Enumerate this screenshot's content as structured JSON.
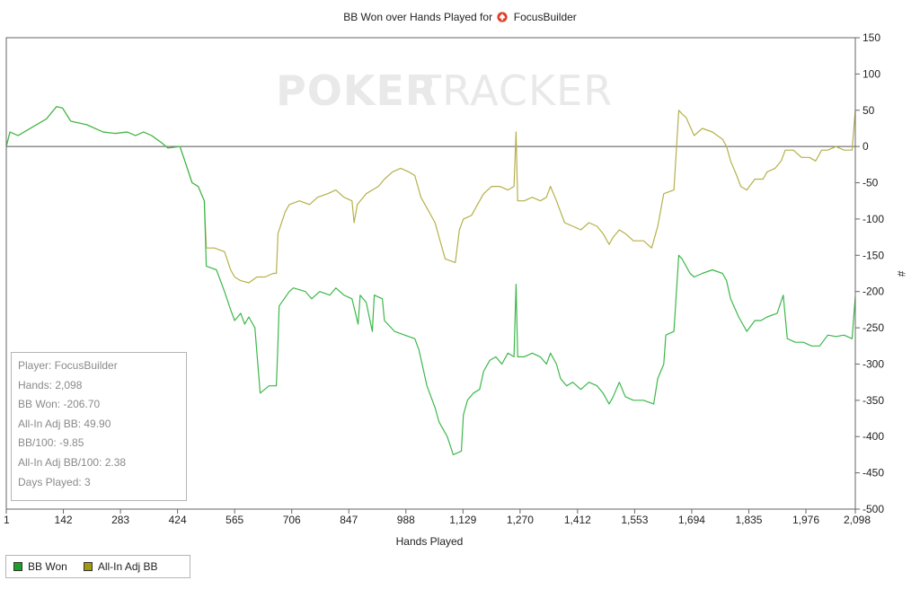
{
  "title": {
    "prefix": "BB Won over Hands Played for",
    "player": "FocusBuilder"
  },
  "watermark": {
    "part1": "POKER",
    "part2": "TRACKER"
  },
  "chart_data": {
    "type": "line",
    "title": "BB Won over Hands Played for FocusBuilder",
    "xlabel": "Hands Played",
    "ylabel": "#",
    "xlim": [
      1,
      2098
    ],
    "ylim": [
      -500,
      150
    ],
    "x_ticks": [
      1,
      142,
      283,
      424,
      565,
      706,
      847,
      988,
      1129,
      1270,
      1412,
      1553,
      1694,
      1835,
      1976,
      2098
    ],
    "x_tick_labels": [
      "1",
      "142",
      "283",
      "424",
      "565",
      "706",
      "847",
      "988",
      "1,129",
      "1,270",
      "1,412",
      "1,553",
      "1,694",
      "1,835",
      "1,976",
      "2,098"
    ],
    "y_ticks": [
      150,
      100,
      50,
      0,
      -50,
      -100,
      -150,
      -200,
      -250,
      -300,
      -350,
      -400,
      -450,
      -500
    ],
    "grid": false,
    "legend_position": "bottom-left",
    "series": [
      {
        "name": "BB Won",
        "color": "#3cb84a",
        "points": [
          [
            1,
            0
          ],
          [
            10,
            20
          ],
          [
            30,
            15
          ],
          [
            60,
            25
          ],
          [
            100,
            38
          ],
          [
            125,
            55
          ],
          [
            140,
            53
          ],
          [
            160,
            35
          ],
          [
            200,
            30
          ],
          [
            240,
            20
          ],
          [
            270,
            18
          ],
          [
            300,
            20
          ],
          [
            320,
            15
          ],
          [
            340,
            20
          ],
          [
            360,
            15
          ],
          [
            385,
            5
          ],
          [
            400,
            -2
          ],
          [
            430,
            0
          ],
          [
            445,
            -25
          ],
          [
            460,
            -50
          ],
          [
            475,
            -55
          ],
          [
            490,
            -75
          ],
          [
            495,
            -165
          ],
          [
            520,
            -170
          ],
          [
            540,
            -200
          ],
          [
            555,
            -225
          ],
          [
            565,
            -240
          ],
          [
            580,
            -230
          ],
          [
            590,
            -245
          ],
          [
            600,
            -235
          ],
          [
            615,
            -250
          ],
          [
            628,
            -340
          ],
          [
            650,
            -330
          ],
          [
            668,
            -330
          ],
          [
            672,
            -270
          ],
          [
            675,
            -220
          ],
          [
            700,
            -200
          ],
          [
            710,
            -195
          ],
          [
            740,
            -200
          ],
          [
            755,
            -210
          ],
          [
            775,
            -200
          ],
          [
            800,
            -205
          ],
          [
            815,
            -195
          ],
          [
            835,
            -205
          ],
          [
            855,
            -210
          ],
          [
            870,
            -245
          ],
          [
            875,
            -205
          ],
          [
            890,
            -215
          ],
          [
            905,
            -255
          ],
          [
            910,
            -205
          ],
          [
            930,
            -210
          ],
          [
            935,
            -240
          ],
          [
            960,
            -255
          ],
          [
            985,
            -260
          ],
          [
            1010,
            -265
          ],
          [
            1020,
            -280
          ],
          [
            1040,
            -330
          ],
          [
            1060,
            -360
          ],
          [
            1070,
            -380
          ],
          [
            1090,
            -400
          ],
          [
            1105,
            -425
          ],
          [
            1125,
            -420
          ],
          [
            1130,
            -370
          ],
          [
            1140,
            -350
          ],
          [
            1155,
            -340
          ],
          [
            1170,
            -335
          ],
          [
            1180,
            -310
          ],
          [
            1195,
            -295
          ],
          [
            1210,
            -290
          ],
          [
            1225,
            -300
          ],
          [
            1240,
            -285
          ],
          [
            1255,
            -290
          ],
          [
            1260,
            -190
          ],
          [
            1264,
            -290
          ],
          [
            1280,
            -290
          ],
          [
            1300,
            -285
          ],
          [
            1320,
            -290
          ],
          [
            1335,
            -300
          ],
          [
            1345,
            -285
          ],
          [
            1360,
            -300
          ],
          [
            1370,
            -320
          ],
          [
            1385,
            -330
          ],
          [
            1400,
            -325
          ],
          [
            1420,
            -335
          ],
          [
            1440,
            -325
          ],
          [
            1460,
            -330
          ],
          [
            1475,
            -340
          ],
          [
            1490,
            -355
          ],
          [
            1500,
            -345
          ],
          [
            1515,
            -325
          ],
          [
            1530,
            -345
          ],
          [
            1550,
            -350
          ],
          [
            1575,
            -350
          ],
          [
            1600,
            -355
          ],
          [
            1610,
            -320
          ],
          [
            1625,
            -300
          ],
          [
            1630,
            -260
          ],
          [
            1650,
            -255
          ],
          [
            1662,
            -150
          ],
          [
            1670,
            -155
          ],
          [
            1690,
            -175
          ],
          [
            1700,
            -180
          ],
          [
            1720,
            -175
          ],
          [
            1745,
            -170
          ],
          [
            1770,
            -175
          ],
          [
            1780,
            -185
          ],
          [
            1790,
            -210
          ],
          [
            1810,
            -235
          ],
          [
            1820,
            -245
          ],
          [
            1830,
            -255
          ],
          [
            1850,
            -240
          ],
          [
            1865,
            -240
          ],
          [
            1880,
            -235
          ],
          [
            1905,
            -230
          ],
          [
            1920,
            -205
          ],
          [
            1930,
            -265
          ],
          [
            1950,
            -270
          ],
          [
            1970,
            -270
          ],
          [
            1990,
            -275
          ],
          [
            2010,
            -275
          ],
          [
            2030,
            -260
          ],
          [
            2050,
            -262
          ],
          [
            2070,
            -260
          ],
          [
            2090,
            -265
          ],
          [
            2098,
            -206.7
          ]
        ]
      },
      {
        "name": "All-In Adj BB",
        "color": "#b6b04a",
        "points": [
          [
            1,
            0
          ],
          [
            10,
            20
          ],
          [
            30,
            15
          ],
          [
            60,
            25
          ],
          [
            100,
            38
          ],
          [
            125,
            55
          ],
          [
            140,
            53
          ],
          [
            160,
            35
          ],
          [
            200,
            30
          ],
          [
            240,
            20
          ],
          [
            270,
            18
          ],
          [
            300,
            20
          ],
          [
            320,
            15
          ],
          [
            340,
            20
          ],
          [
            360,
            15
          ],
          [
            385,
            5
          ],
          [
            400,
            -2
          ],
          [
            430,
            0
          ],
          [
            445,
            -25
          ],
          [
            460,
            -50
          ],
          [
            475,
            -55
          ],
          [
            490,
            -75
          ],
          [
            495,
            -140
          ],
          [
            515,
            -140
          ],
          [
            540,
            -145
          ],
          [
            555,
            -170
          ],
          [
            565,
            -180
          ],
          [
            580,
            -185
          ],
          [
            600,
            -188
          ],
          [
            620,
            -180
          ],
          [
            640,
            -180
          ],
          [
            660,
            -175
          ],
          [
            668,
            -175
          ],
          [
            672,
            -120
          ],
          [
            690,
            -90
          ],
          [
            700,
            -80
          ],
          [
            725,
            -75
          ],
          [
            750,
            -80
          ],
          [
            770,
            -70
          ],
          [
            795,
            -65
          ],
          [
            815,
            -60
          ],
          [
            835,
            -70
          ],
          [
            855,
            -75
          ],
          [
            860,
            -105
          ],
          [
            868,
            -80
          ],
          [
            890,
            -65
          ],
          [
            905,
            -60
          ],
          [
            920,
            -55
          ],
          [
            935,
            -45
          ],
          [
            955,
            -35
          ],
          [
            975,
            -30
          ],
          [
            995,
            -35
          ],
          [
            1010,
            -40
          ],
          [
            1025,
            -70
          ],
          [
            1045,
            -90
          ],
          [
            1060,
            -105
          ],
          [
            1070,
            -125
          ],
          [
            1085,
            -155
          ],
          [
            1110,
            -160
          ],
          [
            1120,
            -115
          ],
          [
            1130,
            -100
          ],
          [
            1150,
            -95
          ],
          [
            1165,
            -80
          ],
          [
            1180,
            -65
          ],
          [
            1200,
            -55
          ],
          [
            1220,
            -55
          ],
          [
            1240,
            -60
          ],
          [
            1255,
            -55
          ],
          [
            1260,
            20
          ],
          [
            1264,
            -75
          ],
          [
            1280,
            -75
          ],
          [
            1300,
            -70
          ],
          [
            1320,
            -75
          ],
          [
            1335,
            -70
          ],
          [
            1345,
            -55
          ],
          [
            1360,
            -75
          ],
          [
            1370,
            -90
          ],
          [
            1380,
            -105
          ],
          [
            1400,
            -110
          ],
          [
            1420,
            -115
          ],
          [
            1440,
            -105
          ],
          [
            1460,
            -110
          ],
          [
            1475,
            -120
          ],
          [
            1490,
            -135
          ],
          [
            1500,
            -125
          ],
          [
            1515,
            -115
          ],
          [
            1530,
            -120
          ],
          [
            1550,
            -130
          ],
          [
            1575,
            -130
          ],
          [
            1595,
            -140
          ],
          [
            1610,
            -110
          ],
          [
            1625,
            -65
          ],
          [
            1650,
            -60
          ],
          [
            1662,
            50
          ],
          [
            1670,
            45
          ],
          [
            1680,
            40
          ],
          [
            1700,
            15
          ],
          [
            1720,
            25
          ],
          [
            1745,
            20
          ],
          [
            1770,
            10
          ],
          [
            1780,
            0
          ],
          [
            1790,
            -20
          ],
          [
            1805,
            -40
          ],
          [
            1815,
            -55
          ],
          [
            1830,
            -60
          ],
          [
            1850,
            -45
          ],
          [
            1870,
            -45
          ],
          [
            1880,
            -35
          ],
          [
            1900,
            -30
          ],
          [
            1915,
            -20
          ],
          [
            1925,
            -5
          ],
          [
            1945,
            -5
          ],
          [
            1965,
            -15
          ],
          [
            1985,
            -15
          ],
          [
            2000,
            -20
          ],
          [
            2015,
            -5
          ],
          [
            2030,
            -5
          ],
          [
            2050,
            0
          ],
          [
            2070,
            -5
          ],
          [
            2090,
            -5
          ],
          [
            2098,
            49.9
          ]
        ]
      }
    ]
  },
  "stats": {
    "player": "Player: FocusBuilder",
    "hands": "Hands: 2,098",
    "bb_won": "BB Won: -206.70",
    "allin_adj_bb": "All-In Adj BB: 49.90",
    "bb_100": "BB/100: -9.85",
    "allin_adj_bb_100": "All-In Adj BB/100: 2.38",
    "days_played": "Days Played: 3"
  },
  "legend": {
    "items": [
      {
        "label": "BB Won",
        "color": "#1c9e2a"
      },
      {
        "label": "All-In Adj BB",
        "color": "#a09a10"
      }
    ]
  }
}
